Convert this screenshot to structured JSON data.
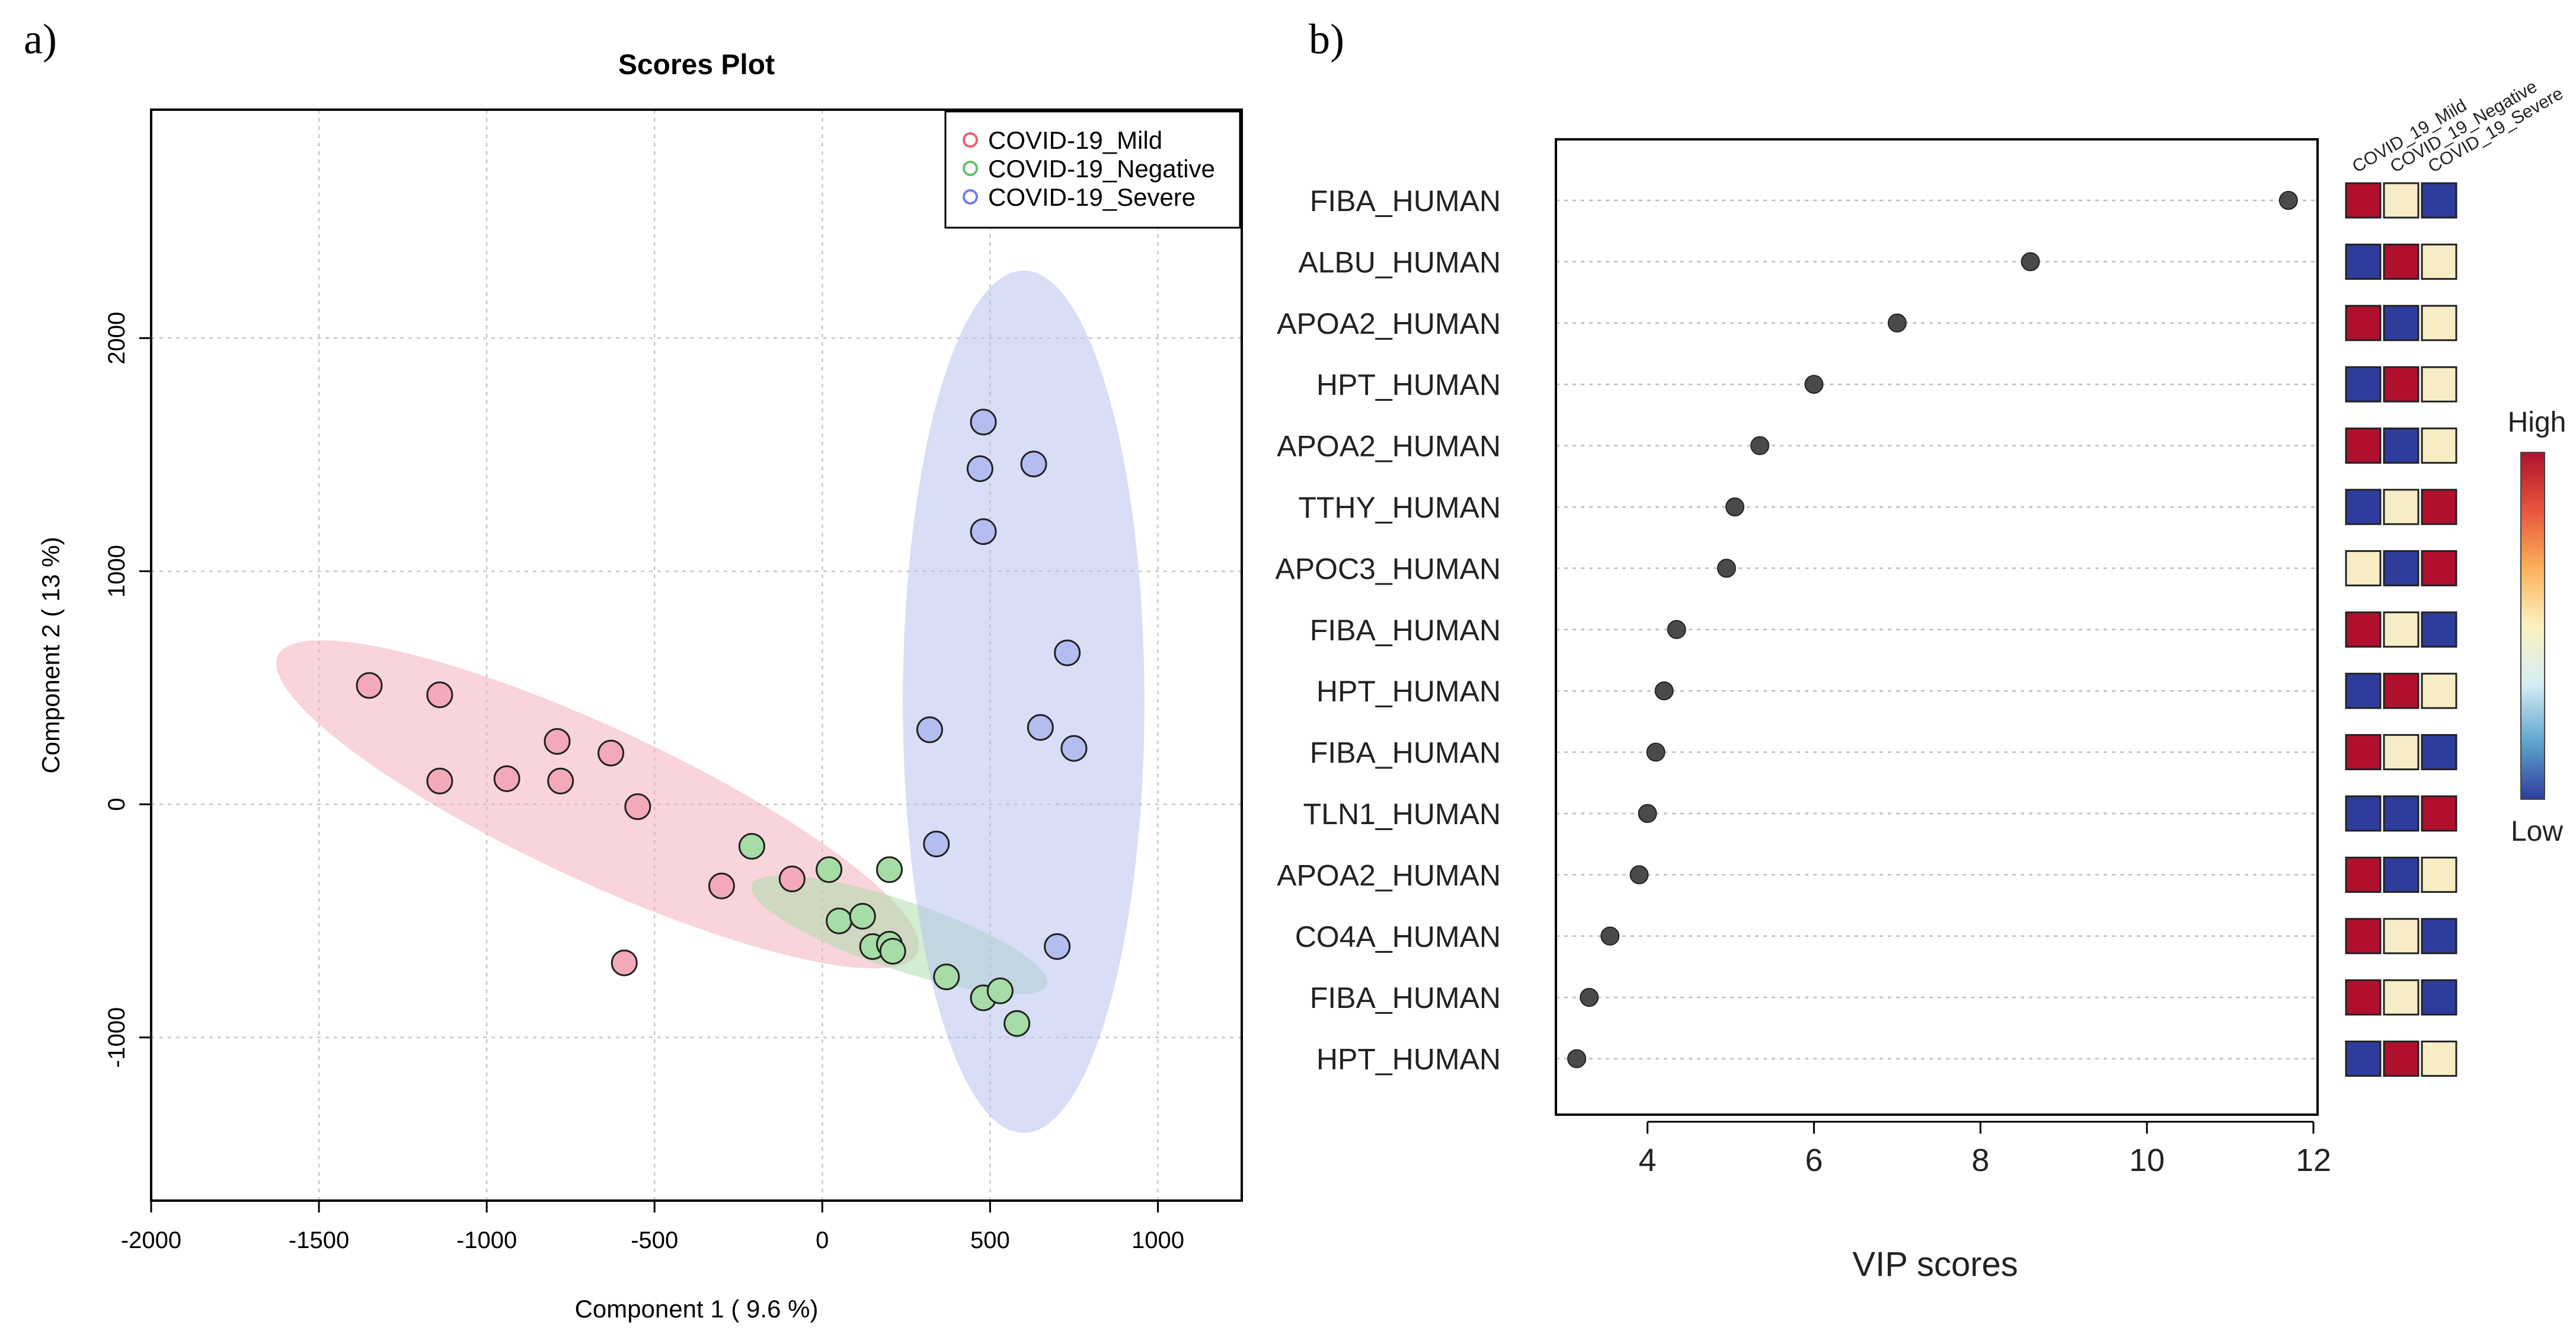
{
  "panel_labels": {
    "a": "a)",
    "b": "b)"
  },
  "chart_data": [
    {
      "type": "scatter",
      "title": "Scores Plot",
      "xlabel": "Component 1 ( 9.6 %)",
      "ylabel": "Component 2 ( 13 %)",
      "xlim": [
        -2000,
        1250
      ],
      "ylim": [
        -1700,
        2980
      ],
      "xticks": [
        -2000,
        -1500,
        -1000,
        -500,
        0,
        500,
        1000
      ],
      "xtick_labels": [
        "-2000",
        "-1500",
        "-1000",
        "-500",
        "0",
        "500",
        "1000"
      ],
      "yticks": [
        -1000,
        0,
        1000,
        2000
      ],
      "ytick_labels": [
        "-1000",
        "0",
        "1000",
        "2000"
      ],
      "grid": true,
      "legend_position": "top-right",
      "series": [
        {
          "name": "COVID-19_Mild",
          "color": "#e8607a",
          "fill": "#f4a9b8",
          "points": [
            [
              -1350,
              510
            ],
            [
              -1140,
              470
            ],
            [
              -1140,
              100
            ],
            [
              -940,
              110
            ],
            [
              -790,
              270
            ],
            [
              -780,
              100
            ],
            [
              -630,
              220
            ],
            [
              -550,
              -10
            ],
            [
              -300,
              -350
            ],
            [
              -90,
              -320
            ],
            [
              -590,
              -680
            ]
          ],
          "ellipse": {
            "cx": -670,
            "cy": 0,
            "a": 1150,
            "b": 300,
            "angle_deg": -35
          }
        },
        {
          "name": "COVID-19_Negative",
          "color": "#67c167",
          "fill": "#a6dca6",
          "points": [
            [
              -210,
              -180
            ],
            [
              20,
              -280
            ],
            [
              200,
              -280
            ],
            [
              50,
              -500
            ],
            [
              120,
              -480
            ],
            [
              150,
              -610
            ],
            [
              200,
              -600
            ],
            [
              210,
              -630
            ],
            [
              370,
              -740
            ],
            [
              480,
              -830
            ],
            [
              530,
              -800
            ],
            [
              580,
              -940
            ]
          ],
          "ellipse": {
            "cx": 230,
            "cy": -560,
            "a": 490,
            "b": 140,
            "angle_deg": -27
          }
        },
        {
          "name": "COVID-19_Severe",
          "color": "#7080e0",
          "fill": "#b3bdf0",
          "points": [
            [
              480,
              1640
            ],
            [
              630,
              1460
            ],
            [
              470,
              1440
            ],
            [
              480,
              1170
            ],
            [
              730,
              650
            ],
            [
              320,
              320
            ],
            [
              650,
              330
            ],
            [
              750,
              240
            ],
            [
              340,
              -170
            ],
            [
              700,
              -610
            ]
          ],
          "ellipse": {
            "cx": 600,
            "cy": 440,
            "a": 1850,
            "b": 360,
            "angle_deg": 90
          }
        }
      ]
    },
    {
      "type": "dot",
      "xlabel": "VIP scores",
      "xlim": [
        2.9,
        12.05
      ],
      "xticks": [
        4,
        6,
        8,
        10,
        12
      ],
      "xtick_labels": [
        "4",
        "6",
        "8",
        "10",
        "12"
      ],
      "grid": true,
      "proteins": [
        {
          "name": "FIBA_HUMAN",
          "vip": 11.7
        },
        {
          "name": "ALBU_HUMAN",
          "vip": 8.6
        },
        {
          "name": "APOA2_HUMAN",
          "vip": 7.0
        },
        {
          "name": "HPT_HUMAN",
          "vip": 6.0
        },
        {
          "name": "APOA2_HUMAN",
          "vip": 5.35
        },
        {
          "name": "TTHY_HUMAN",
          "vip": 5.05
        },
        {
          "name": "APOC3_HUMAN",
          "vip": 4.95
        },
        {
          "name": "FIBA_HUMAN",
          "vip": 4.35
        },
        {
          "name": "HPT_HUMAN",
          "vip": 4.2
        },
        {
          "name": "FIBA_HUMAN",
          "vip": 4.1
        },
        {
          "name": "TLN1_HUMAN",
          "vip": 4.0
        },
        {
          "name": "APOA2_HUMAN",
          "vip": 3.9
        },
        {
          "name": "CO4A_HUMAN",
          "vip": 3.55
        },
        {
          "name": "FIBA_HUMAN",
          "vip": 3.3
        },
        {
          "name": "HPT_HUMAN",
          "vip": 3.15
        }
      ],
      "heatmap": {
        "columns": [
          "COVID_19_Mild",
          "COVID_19_Negative",
          "COVID_19_Severe"
        ],
        "levels": [
          [
            "high",
            "mid",
            "low"
          ],
          [
            "low",
            "high",
            "mid"
          ],
          [
            "high",
            "low",
            "mid"
          ],
          [
            "low",
            "high",
            "mid"
          ],
          [
            "high",
            "low",
            "mid"
          ],
          [
            "low",
            "mid",
            "high"
          ],
          [
            "mid",
            "low",
            "high"
          ],
          [
            "high",
            "mid",
            "low"
          ],
          [
            "low",
            "high",
            "mid"
          ],
          [
            "high",
            "mid",
            "low"
          ],
          [
            "low",
            "low",
            "high"
          ],
          [
            "high",
            "low",
            "mid"
          ],
          [
            "high",
            "mid",
            "low"
          ],
          [
            "high",
            "mid",
            "low"
          ],
          [
            "low",
            "high",
            "mid"
          ]
        ],
        "level_colors": {
          "high": "#b0102e",
          "mid": "#f7edc4",
          "low": "#2e3d9c"
        }
      },
      "colorbar": {
        "high_label": "High",
        "low_label": "Low",
        "stops": [
          "#b0102e",
          "#e8553c",
          "#fbb05a",
          "#fbf2c0",
          "#d6eef3",
          "#5fa6cf",
          "#2e3d9c"
        ]
      }
    }
  ]
}
